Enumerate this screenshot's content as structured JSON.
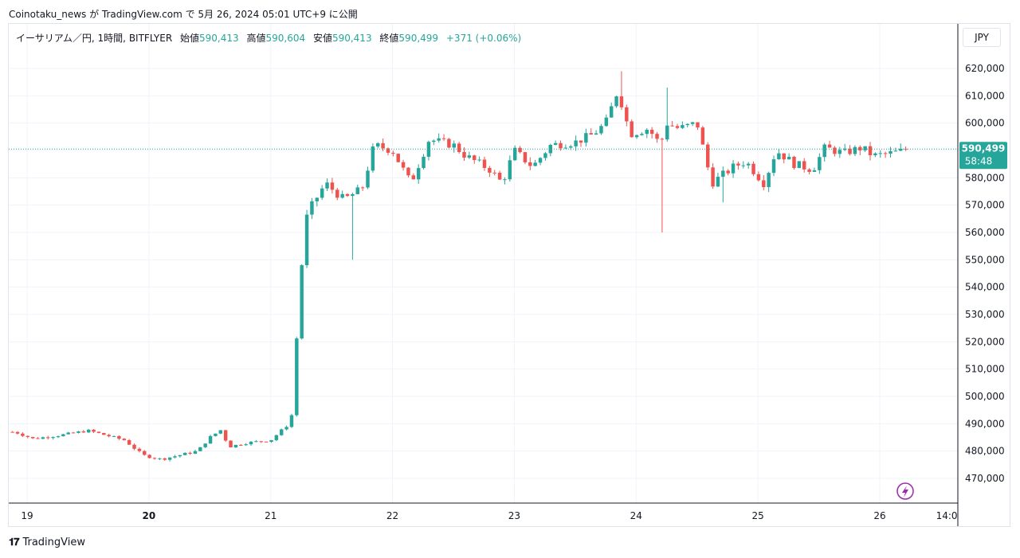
{
  "header": {
    "publish_line": "Coinotaku_news が TradingView.com で 5月 26, 2024 05:01 UTC+9 に公開"
  },
  "legend": {
    "symbol": "イーサリアム／円, 1時間, BITFLYER",
    "open_label": "始値",
    "open": "590,413",
    "high_label": "高値",
    "high": "590,604",
    "low_label": "安値",
    "low": "590,413",
    "close_label": "終値",
    "close": "590,499",
    "change": "+371 (+0.06%)"
  },
  "currency_button": "JPY",
  "price_badge": {
    "price": "590,499",
    "countdown": "58:48"
  },
  "brand": {
    "name": "TradingView"
  },
  "colors": {
    "up": "#26a69a",
    "down": "#ef5350",
    "grid": "#f0f3fa",
    "axis": "#131722"
  },
  "chart_data": {
    "type": "candlestick",
    "y_ticks": [
      620000,
      610000,
      600000,
      590000,
      580000,
      570000,
      560000,
      550000,
      540000,
      530000,
      520000,
      510000,
      500000,
      490000,
      480000,
      470000
    ],
    "y_tick_labels": [
      "620,000",
      "610,000",
      "600,000",
      "590,000",
      "580,000",
      "570,000",
      "560,000",
      "550,000",
      "540,000",
      "530,000",
      "520,000",
      "510,000",
      "500,000",
      "490,000",
      "480,000",
      "470,000"
    ],
    "x_tick_labels": [
      "19",
      "20",
      "21",
      "22",
      "23",
      "24",
      "25",
      "26",
      "14:0"
    ],
    "last_price": 590499,
    "anchors": [
      [
        18.9,
        487000
      ],
      [
        19.05,
        484500
      ],
      [
        19.3,
        486000
      ],
      [
        19.5,
        487500
      ],
      [
        19.8,
        484000
      ],
      [
        19.95,
        478500
      ],
      [
        20.1,
        477000
      ],
      [
        20.4,
        480000
      ],
      [
        20.5,
        485000
      ],
      [
        20.6,
        488000
      ],
      [
        20.65,
        481500
      ],
      [
        20.8,
        483000
      ],
      [
        21.0,
        484000
      ],
      [
        21.15,
        490000
      ],
      [
        21.17,
        492000
      ],
      [
        21.25,
        546000
      ],
      [
        21.3,
        567000
      ],
      [
        21.45,
        578000
      ],
      [
        21.6,
        572000
      ],
      [
        21.75,
        576000
      ],
      [
        21.85,
        592000
      ],
      [
        22.0,
        590000
      ],
      [
        22.15,
        578000
      ],
      [
        22.3,
        594000
      ],
      [
        22.5,
        592000
      ],
      [
        22.6,
        588000
      ],
      [
        22.8,
        583000
      ],
      [
        22.9,
        578000
      ],
      [
        23.0,
        590000
      ],
      [
        23.15,
        584000
      ],
      [
        23.3,
        592000
      ],
      [
        23.5,
        593000
      ],
      [
        23.65,
        596000
      ],
      [
        23.75,
        600000
      ],
      [
        23.85,
        612000
      ],
      [
        23.95,
        596000
      ],
      [
        24.1,
        598000
      ],
      [
        24.2,
        592000
      ],
      [
        24.25,
        600000
      ],
      [
        24.35,
        598000
      ],
      [
        24.5,
        600000
      ],
      [
        24.62,
        578000
      ],
      [
        24.8,
        584000
      ],
      [
        24.9,
        586000
      ],
      [
        25.05,
        578000
      ],
      [
        25.15,
        590000
      ],
      [
        25.3,
        585000
      ],
      [
        25.45,
        583000
      ],
      [
        25.55,
        591000
      ],
      [
        25.7,
        589000
      ],
      [
        25.85,
        591000
      ],
      [
        25.95,
        588000
      ],
      [
        26.1,
        589000
      ],
      [
        26.2,
        590000
      ],
      [
        26.25,
        590499
      ]
    ],
    "extreme_wicks": [
      {
        "day": 21.68,
        "low": 550000
      },
      {
        "day": 24.21,
        "low": 560000
      },
      {
        "day": 23.87,
        "high": 619000
      },
      {
        "day": 24.25,
        "high": 613000
      },
      {
        "day": 24.72,
        "low": 571000
      }
    ]
  }
}
